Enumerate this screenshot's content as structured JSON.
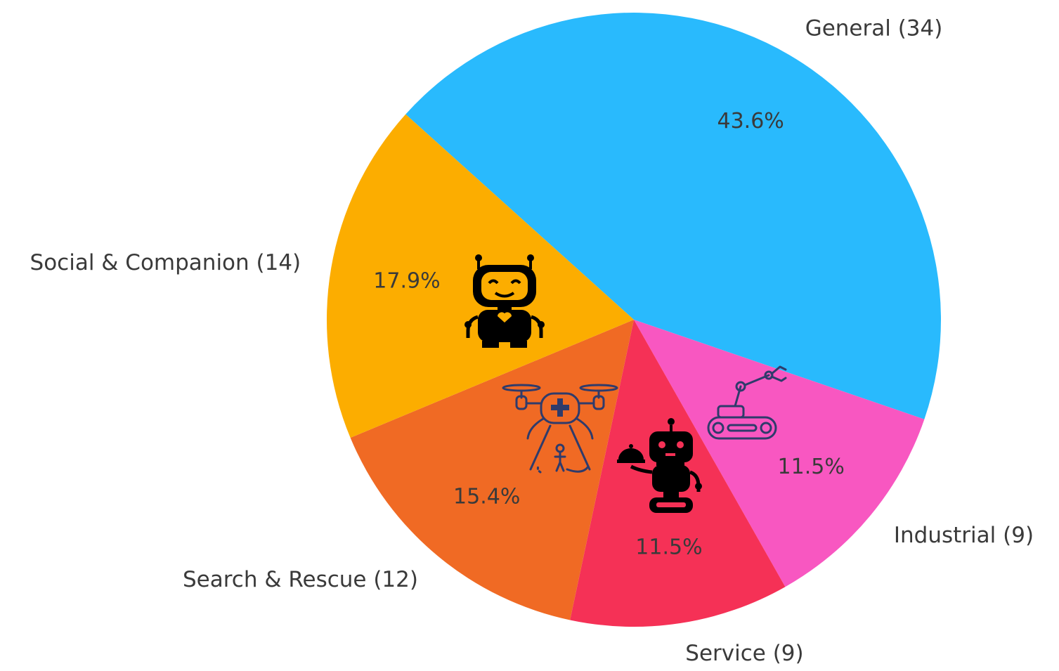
{
  "chart_data": {
    "type": "pie",
    "categories": [
      "General",
      "Industrial",
      "Service",
      "Search & Rescue",
      "Social & Companion"
    ],
    "values": [
      34,
      9,
      9,
      12,
      14
    ],
    "labels": [
      "General (34)",
      "Industrial (9)",
      "Service (9)",
      "Search & Rescue (12)",
      "Social & Companion (14)"
    ],
    "percent_labels": [
      "43.6%",
      "11.5%",
      "11.5%",
      "15.4%",
      "17.9%"
    ],
    "colors": [
      "#29BAFD",
      "#F857C1",
      "#F53156",
      "#F06A24",
      "#FCAD00"
    ],
    "icons": [
      "none",
      "robotic-arm-icon",
      "waiter-robot-icon",
      "rescue-drone-icon",
      "companion-robot-icon"
    ],
    "start_angle_deg": 138,
    "direction": "clockwise",
    "legend": "none"
  }
}
